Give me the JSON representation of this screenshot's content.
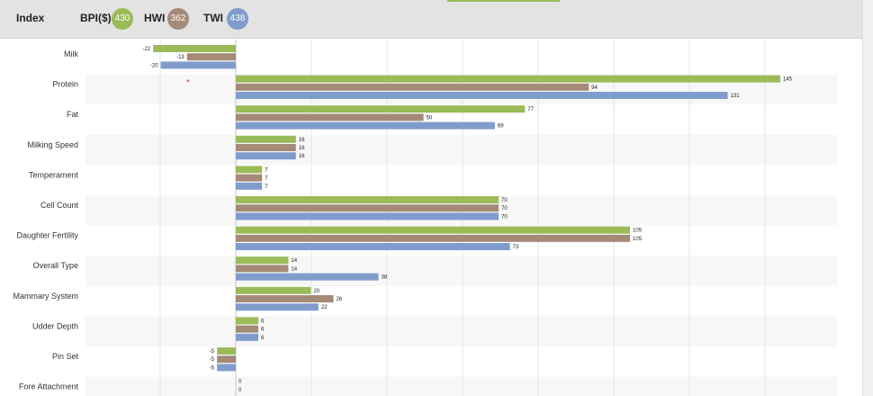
{
  "header": {
    "title": "Index",
    "indexes": [
      {
        "name": "BPI($)",
        "value": "430",
        "color": "#9bbb59"
      },
      {
        "name": "HWI",
        "value": "362",
        "color": "#a58a78"
      },
      {
        "name": "TWI",
        "value": "438",
        "color": "#7f9ccd"
      }
    ]
  },
  "chart_data": {
    "type": "bar",
    "orientation": "horizontal",
    "categories": [
      "Milk",
      "Protein",
      "Fat",
      "Milking Speed",
      "Temperament",
      "Cell Count",
      "Daughter Fertility",
      "Overall Type",
      "Mammary System",
      "Udder Depth",
      "Pin Set",
      "Fore Attachment"
    ],
    "series": [
      {
        "name": "BPI($)",
        "color": "#9bbb59",
        "values": [
          -22,
          145,
          77,
          16,
          7,
          70,
          105,
          14,
          20,
          6,
          -5,
          0
        ]
      },
      {
        "name": "HWI",
        "color": "#a58a78",
        "values": [
          -13,
          94,
          50,
          16,
          7,
          70,
          105,
          14,
          26,
          6,
          -5,
          0
        ]
      },
      {
        "name": "TWI",
        "color": "#7f9ccd",
        "values": [
          -20,
          131,
          69,
          16,
          7,
          70,
          73,
          38,
          22,
          6,
          -5,
          null
        ]
      }
    ],
    "grid": true,
    "annotations": [
      {
        "text": "*",
        "category": "Protein",
        "color": "#cc3333"
      }
    ]
  }
}
